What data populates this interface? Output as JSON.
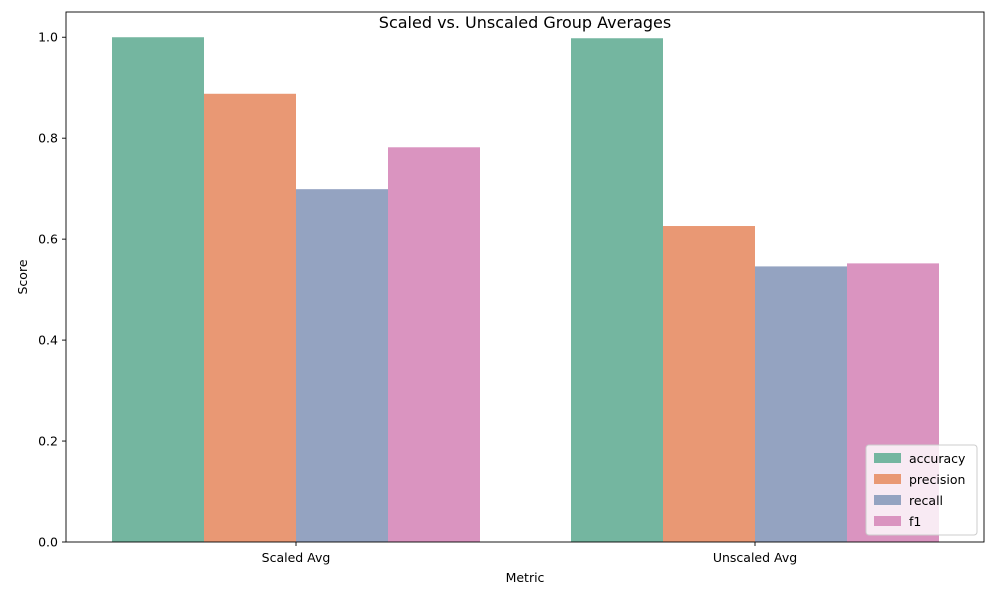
{
  "chart_data": {
    "type": "bar",
    "title": "Scaled vs. Unscaled Group Averages",
    "xlabel": "Metric",
    "ylabel": "Score",
    "categories": [
      "Scaled Avg",
      "Unscaled Avg"
    ],
    "series": [
      {
        "name": "accuracy",
        "color": "#74b6a0",
        "values": [
          1.0,
          0.998
        ]
      },
      {
        "name": "precision",
        "color": "#e99874",
        "values": [
          0.888,
          0.626
        ]
      },
      {
        "name": "recall",
        "color": "#94a3c1",
        "values": [
          0.699,
          0.546
        ]
      },
      {
        "name": "f1",
        "color": "#da94c0",
        "values": [
          0.782,
          0.552
        ]
      }
    ],
    "ylim": [
      0,
      1.05
    ],
    "yticks": [
      "0.0",
      "0.2",
      "0.4",
      "0.6",
      "0.8",
      "1.0"
    ],
    "grid": false,
    "legend_position": "lower right"
  }
}
